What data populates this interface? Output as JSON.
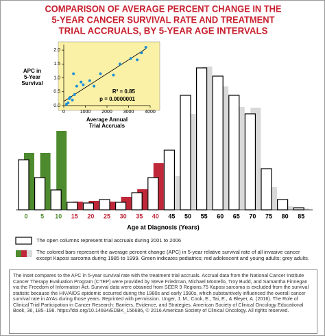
{
  "chart_data": [
    {
      "type": "bar",
      "title_lines": [
        "COMPARISON OF AVERAGE PERCENT CHANGE IN THE",
        "5-YEAR CANCER SURVIVAL RATE AND TREATMENT",
        "TRIAL ACCRUALS, BY 5-YEAR AGE INTERVALS"
      ],
      "title_color": "#c8202f",
      "x_label": "Age at Diagnosis (Years)",
      "categories": [
        "0",
        "5",
        "10",
        "15",
        "20",
        "25",
        "30",
        "35",
        "40",
        "45",
        "50",
        "55",
        "60",
        "65",
        "70",
        "75",
        "80",
        "85"
      ],
      "label_colors": [
        "#4e8a2e",
        "#4e8a2e",
        "#4e8a2e",
        "#c0283a",
        "#c0283a",
        "#c0283a",
        "#c0283a",
        "#c0283a",
        "#c0283a",
        "#000000",
        "#000000",
        "#000000",
        "#000000",
        "#000000",
        "#000000",
        "#000000",
        "#000000",
        "#000000"
      ],
      "series": [
        {
          "name": "The open columns represent trial accruals during 2001 to 2006",
          "color": "#000000",
          "values": [
            73,
            47,
            29,
            11,
            10,
            15,
            11,
            25,
            47,
            87,
            167,
            207,
            195,
            167,
            140,
            60,
            15,
            3
          ]
        },
        {
          "name": "The colored bars represent the average percent change (APC) in 5-year relative survival rate of all invasive cancer except Kaposi sarcoma during 1985 to 1999. Green indicates pediatrics; red adolescent and young adults; grey adults.",
          "colors": [
            "#4e8a2e",
            "#4e8a2e",
            "#4e8a2e",
            "#c0283a",
            "#c0283a",
            "#c0283a",
            "#c0283a",
            "#c0283a",
            "#c0283a",
            "#d9d9d9",
            "#d9d9d9",
            "#d9d9d9",
            "#d9d9d9",
            "#d9d9d9",
            "#d9d9d9",
            "#d9d9d9",
            "#d9d9d9",
            "#d9d9d9"
          ],
          "values": [
            83,
            83,
            115,
            12,
            13,
            12,
            19,
            30,
            68,
            49,
            140,
            209,
            180,
            150,
            149,
            33,
            5,
            2
          ]
        }
      ]
    },
    {
      "type": "scatter",
      "background": "#fbf1a6",
      "color": "#1f8fd6",
      "x_label_lines": [
        "Average Annual",
        "Trial Accruals"
      ],
      "y_label_lines": [
        "APC in",
        "5-Year",
        "Survival"
      ],
      "x": [
        120,
        200,
        250,
        300,
        400,
        450,
        500,
        600,
        800,
        900,
        1200,
        1400,
        1700,
        2300,
        2600,
        3100,
        3400,
        3600,
        3800
      ],
      "y": [
        0.05,
        0.1,
        0.25,
        0.3,
        0.2,
        1.15,
        0.4,
        0.7,
        0.85,
        0.75,
        0.9,
        0.7,
        1.15,
        1.1,
        1.5,
        1.7,
        1.65,
        1.9,
        2.1
      ],
      "trend": {
        "x": [
          0,
          3800
        ],
        "y": [
          0.15,
          2.05
        ]
      },
      "xlim": [
        0,
        4000
      ],
      "ylim": [
        0,
        2.2
      ],
      "xticks": [
        0,
        1000,
        2000,
        3000,
        4000
      ],
      "yticks": [
        {
          "value": 0,
          "label": "0.0"
        },
        0.5,
        {
          "value": 1,
          "label": "1.0"
        },
        1.5,
        {
          "value": 2,
          "label": "2.0"
        }
      ],
      "annotations": [
        "R² = 0.85",
        "p = 0.0000001"
      ]
    }
  ],
  "footnote": "The inset compares to the APC in 5-year survival rate with the treatment trial accruals.  Accrual data from the National Cancer Institute Cancer Therapy Evaluation Program (CTEP) were provided by Steve Friedman, Michael Montello, Troy Budd, and Samantha Finnegan via the Freedom of Information Act. Survival data were obtained from SEER 9 Regions.75 Kaposi sarcoma is excluded from the survival statistic because the HIV/AIDS epidemic occurred during the 1980s and early 1990s, which substantively influenced the overall cancer survival rate in AYAs during those years. Reprinted with permission. Unger, J. M., Cook, E., Tai, E., & Bleyer, A. (2016). The Role of Clinical Trial Participation in Cancer Research: Barriers, Evidence, and Strategies. American Society of Clinical Oncology Educational Book, 36, 185–198. https://doi.org/10.14694/EDBK_156686, © 2016 American Society of Clinical Oncology. All rights reserved."
}
